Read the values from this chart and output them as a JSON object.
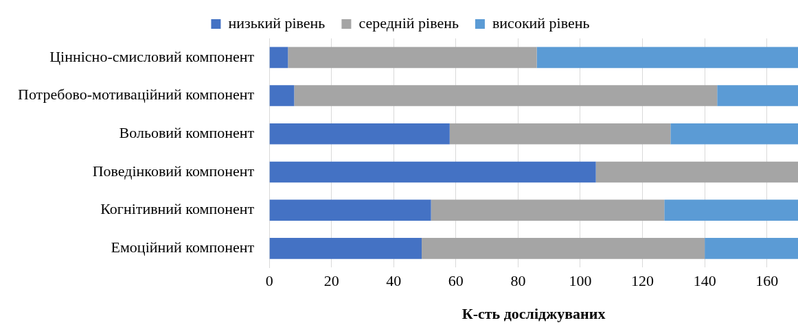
{
  "chart_data": {
    "type": "bar",
    "orientation": "horizontal",
    "stacked": true,
    "xlabel": "К-сть досліджуваних",
    "categories": [
      "Ціннісно-смисловий компонент",
      "Потребово-мотиваційний компонент",
      "Вольовий компонент",
      "Поведінковий компонент",
      "Когнітивний компонент",
      "Емоційний компонент"
    ],
    "series": [
      {
        "name": "низький рівень",
        "color": "#4472c4",
        "values": [
          6,
          8,
          58,
          105,
          52,
          49
        ]
      },
      {
        "name": "середній рівень",
        "color": "#a5a5a5",
        "values": [
          80,
          136,
          71,
          65,
          75,
          91
        ]
      },
      {
        "name": "високий рівень",
        "color": "#5b9bd5",
        "values": [
          84,
          26,
          41,
          0,
          43,
          30
        ]
      }
    ],
    "xlim": [
      0,
      170
    ],
    "xticks": [
      0,
      20,
      40,
      60,
      80,
      100,
      120,
      140,
      160
    ],
    "grid": "x",
    "legend": "top"
  }
}
